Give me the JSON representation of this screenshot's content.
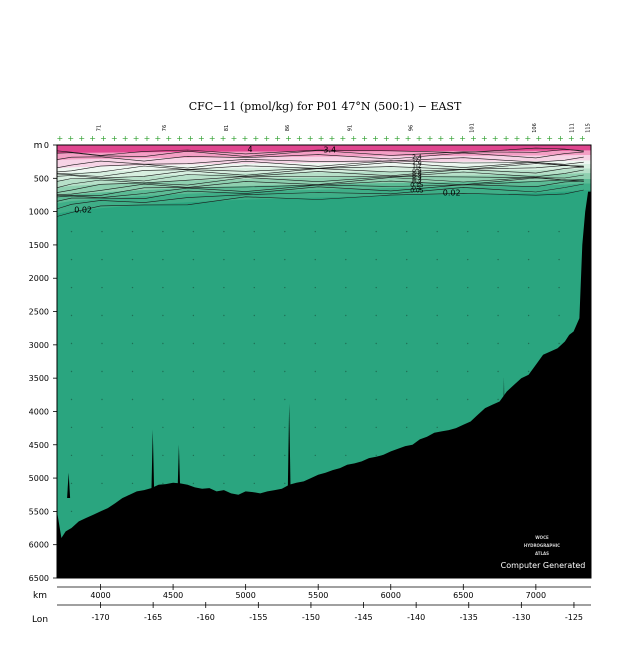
{
  "chart_data": {
    "type": "section contour",
    "title": "CFC−11 (pmol/kg) for P01 47°N (500:1) − EAST",
    "depth_unit": "m",
    "x_axis_label": "km",
    "lon_axis_label": "Lon",
    "y_ticks": [
      0,
      500,
      1000,
      1500,
      2000,
      2500,
      3000,
      3500,
      4000,
      4500,
      5000,
      5500,
      6000,
      6500
    ],
    "km_ticks": [
      4000,
      4500,
      5000,
      5500,
      6000,
      6500,
      7000
    ],
    "lon_ticks": [
      -170,
      -165,
      -160,
      -155,
      -150,
      -145,
      -140,
      -135,
      -130,
      -125
    ],
    "xlim_km": [
      3700,
      7380
    ],
    "ylim_m": [
      0,
      6500
    ],
    "station_labels": [
      {
        "label": "71",
        "km": 4000
      },
      {
        "label": "76",
        "km": 4450
      },
      {
        "label": "81",
        "km": 4880
      },
      {
        "label": "86",
        "km": 5300
      },
      {
        "label": "91",
        "km": 5730
      },
      {
        "label": "96",
        "km": 6150
      },
      {
        "label": "101",
        "km": 6570
      },
      {
        "label": "106",
        "km": 7000
      },
      {
        "label": "111",
        "km": 7260
      },
      {
        "label": "115",
        "km": 7370
      }
    ],
    "contour_labels": [
      {
        "text": "4",
        "km": 5030,
        "depth": 60
      },
      {
        "text": "3.4",
        "km": 5580,
        "depth": 70
      },
      {
        "text": "0.02",
        "km": 3880,
        "depth": 970
      },
      {
        "text": "0.02",
        "km": 6420,
        "depth": 710
      }
    ],
    "stacked_labels_km": 6180,
    "stacked_labels": [
      "2.4",
      "2",
      "1.6",
      "1.2",
      "1",
      "0.8",
      "0.6",
      "0.4",
      "0.3",
      "0.2",
      "0.15",
      "0.1",
      "0.05"
    ],
    "contour_levels": [
      4,
      3.4,
      3,
      2.4,
      2,
      1.6,
      1.2,
      1,
      0.8,
      0.6,
      0.4,
      0.3,
      0.2,
      0.15,
      0.1,
      0.05,
      0.02
    ],
    "bottom_contour_depth": {
      "km": [
        3700,
        3800,
        4000,
        4300,
        4600,
        5000,
        5500,
        6000,
        6500,
        7000,
        7200,
        7330
      ],
      "depth": [
        1030,
        990,
        950,
        900,
        860,
        820,
        790,
        760,
        740,
        720,
        700,
        680
      ]
    },
    "seafloor_depth": {
      "km": [
        3700,
        3730,
        3760,
        3800,
        3850,
        3900,
        3950,
        4000,
        4050,
        4100,
        4150,
        4200,
        4250,
        4300,
        4350,
        4400,
        4450,
        4500,
        4550,
        4600,
        4650,
        4700,
        4750,
        4800,
        4850,
        4900,
        4950,
        5000,
        5050,
        5100,
        5150,
        5200,
        5250,
        5300,
        5350,
        5400,
        5450,
        5500,
        5550,
        5600,
        5650,
        5700,
        5750,
        5800,
        5850,
        5900,
        5950,
        6000,
        6050,
        6100,
        6150,
        6200,
        6250,
        6300,
        6350,
        6400,
        6450,
        6500,
        6550,
        6600,
        6650,
        6700,
        6750,
        6800,
        6850,
        6900,
        6950,
        7000,
        7050,
        7100,
        7150,
        7200,
        7230,
        7260,
        7280,
        7300,
        7320,
        7340,
        7360,
        7380
      ],
      "depth": [
        5500,
        5900,
        5800,
        5750,
        5650,
        5600,
        5550,
        5500,
        5450,
        5380,
        5300,
        5250,
        5200,
        5180,
        5150,
        5100,
        5090,
        5070,
        5080,
        5100,
        5140,
        5160,
        5150,
        5200,
        5180,
        5230,
        5250,
        5200,
        5210,
        5230,
        5200,
        5180,
        5160,
        5100,
        5070,
        5050,
        5000,
        4950,
        4920,
        4880,
        4850,
        4800,
        4780,
        4750,
        4700,
        4680,
        4650,
        4600,
        4560,
        4520,
        4500,
        4420,
        4380,
        4320,
        4300,
        4280,
        4250,
        4200,
        4150,
        4050,
        3950,
        3900,
        3850,
        3700,
        3600,
        3500,
        3450,
        3300,
        3150,
        3100,
        3050,
        2950,
        2850,
        2800,
        2700,
        2600,
        1500,
        1000,
        700,
        700
      ]
    },
    "seamount_spikes": [
      {
        "km": 3780,
        "depth": 4920
      },
      {
        "km": 4360,
        "depth": 4270
      },
      {
        "km": 4540,
        "depth": 4500
      },
      {
        "km": 5300,
        "depth": 3880
      },
      {
        "km": 6780,
        "depth": 3480
      }
    ],
    "colors": {
      "deep": "#2aa57f",
      "magenta_top": "#e0468f",
      "pink": "#f49fc5",
      "light_pink": "#f7d4e6",
      "pale_green": "#d7efe0",
      "mid_green": "#8fd0b0",
      "seafloor": "#000000",
      "station_mark": "#2ea02e"
    }
  },
  "credit": {
    "logo_lines": [
      "WOCE",
      "HYDROGRAPHIC",
      "ATLAS"
    ],
    "text": "Computer Generated"
  }
}
